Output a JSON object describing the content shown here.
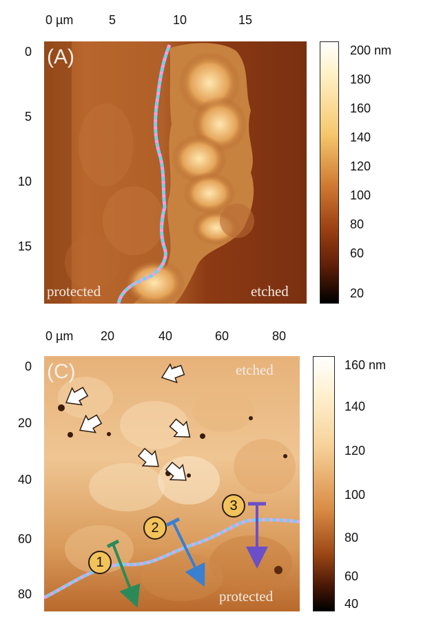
{
  "panelA": {
    "label": "(A)",
    "x_ticks": [
      "0 µm",
      "5",
      "10",
      "15"
    ],
    "y_ticks": [
      "0",
      "5",
      "10",
      "15"
    ],
    "left_region": "protected",
    "right_region": "etched",
    "colorbar": {
      "unit_label": "200 nm",
      "ticks": [
        "180",
        "160",
        "140",
        "120",
        "100",
        "80",
        "60",
        "20"
      ]
    }
  },
  "panelC": {
    "label": "(C)",
    "x_ticks": [
      "0 µm",
      "20",
      "40",
      "60",
      "80"
    ],
    "y_ticks": [
      "0",
      "20",
      "40",
      "60",
      "80"
    ],
    "top_region": "etched",
    "bottom_region": "protected",
    "markers": [
      "1",
      "2",
      "3"
    ],
    "colorbar": {
      "unit_label": "160 nm",
      "ticks": [
        "140",
        "120",
        "100",
        "80",
        "60",
        "40"
      ]
    }
  },
  "colors": {
    "boundary_pink": "#e7a2e6",
    "boundary_cyan": "#6fd3ea",
    "arrow1": "#2c8a5a",
    "arrow2": "#3a7fd0",
    "arrow3": "#6b4fc8"
  }
}
